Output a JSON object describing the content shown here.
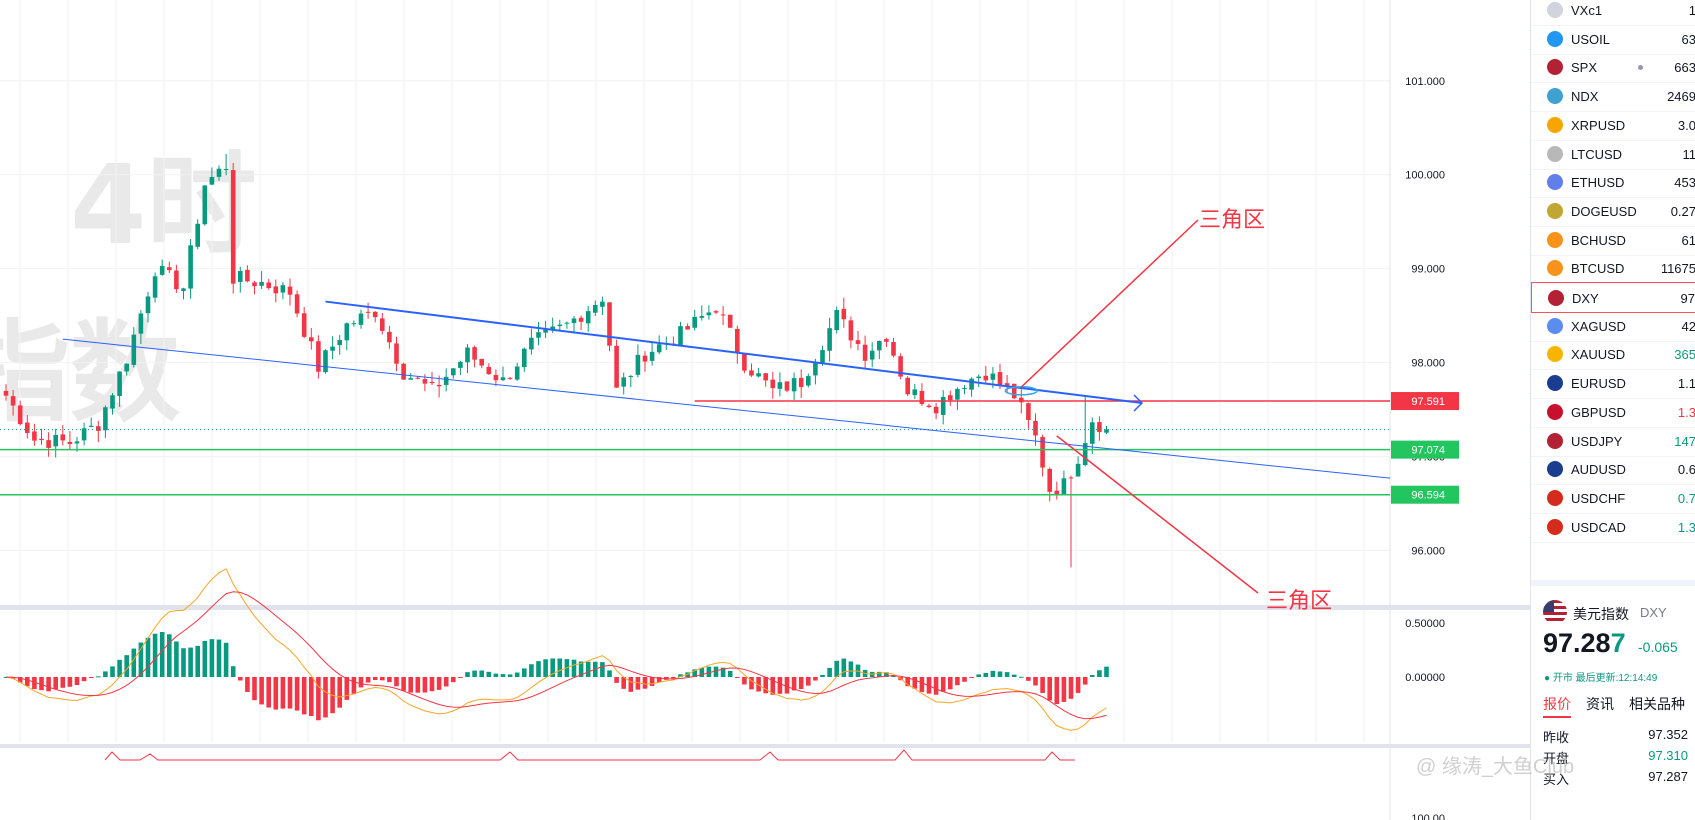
{
  "watermark": {
    "line1": "，4时",
    "line2": "指数"
  },
  "colors": {
    "up": "#089981",
    "down": "#f23645",
    "trend": "#2962ff",
    "support": "#22c55e",
    "resistance": "#f23645",
    "annotation": "#f23645"
  },
  "chart_data": [
    {
      "type": "candlestick",
      "symbol": "DXY",
      "timeframe_label": "4时",
      "y_ticks": [
        "101.000",
        "100.000",
        "99.000",
        "98.000",
        "97.000",
        "96.000"
      ],
      "y_tick_values": [
        101,
        100,
        99,
        98,
        97,
        96
      ],
      "ylim": [
        95.42,
        101.86
      ],
      "price_labels": [
        {
          "label": "97.591",
          "value": 97.591,
          "kind": "resistance"
        },
        {
          "label": "97.074",
          "value": 97.074,
          "kind": "support"
        },
        {
          "label": "96.594",
          "value": 96.594,
          "kind": "support"
        }
      ],
      "last_price": 97.287,
      "annotations": [
        {
          "text": "三角区"
        },
        {
          "text": "三角区"
        }
      ],
      "price_anchors": [
        {
          "bar": 0,
          "close": 97.65
        },
        {
          "bar": 4,
          "close": 97.18
        },
        {
          "bar": 9,
          "close": 97.15
        },
        {
          "bar": 13,
          "close": 97.35
        },
        {
          "bar": 17,
          "close": 98.05
        },
        {
          "bar": 21,
          "close": 99.0
        },
        {
          "bar": 25,
          "close": 98.8
        },
        {
          "bar": 28,
          "close": 99.9
        },
        {
          "bar": 31,
          "close": 100.1
        },
        {
          "bar": 32,
          "close": 98.9
        },
        {
          "bar": 36,
          "close": 98.85
        },
        {
          "bar": 40,
          "close": 98.75
        },
        {
          "bar": 44,
          "close": 97.95
        },
        {
          "bar": 48,
          "close": 98.4
        },
        {
          "bar": 52,
          "close": 98.55
        },
        {
          "bar": 56,
          "close": 97.9
        },
        {
          "bar": 60,
          "close": 97.7
        },
        {
          "bar": 65,
          "close": 98.1
        },
        {
          "bar": 70,
          "close": 97.8
        },
        {
          "bar": 74,
          "close": 98.2
        },
        {
          "bar": 79,
          "close": 98.4
        },
        {
          "bar": 84,
          "close": 98.7
        },
        {
          "bar": 86,
          "close": 97.7
        },
        {
          "bar": 90,
          "close": 98.1
        },
        {
          "bar": 95,
          "close": 98.3
        },
        {
          "bar": 100,
          "close": 98.6
        },
        {
          "bar": 104,
          "close": 98.0
        },
        {
          "bar": 108,
          "close": 97.7
        },
        {
          "bar": 112,
          "close": 97.8
        },
        {
          "bar": 117,
          "close": 98.5
        },
        {
          "bar": 121,
          "close": 98.1
        },
        {
          "bar": 124,
          "close": 98.3
        },
        {
          "bar": 127,
          "close": 97.7
        },
        {
          "bar": 131,
          "close": 97.55
        },
        {
          "bar": 135,
          "close": 97.8
        },
        {
          "bar": 138,
          "close": 97.9
        },
        {
          "bar": 142,
          "close": 97.65
        },
        {
          "bar": 145,
          "close": 97.2
        },
        {
          "bar": 147,
          "close": 96.65
        },
        {
          "bar": 149,
          "close": 96.7
        },
        {
          "bar": 151,
          "close": 97.0
        },
        {
          "bar": 153,
          "close": 97.4
        },
        {
          "bar": 155,
          "close": 97.29
        }
      ]
    },
    {
      "type": "macd",
      "y_ticks": [
        "0.50000",
        "0.00000"
      ],
      "y_tick_values": [
        0.5,
        0.0
      ],
      "ylim": [
        -0.6,
        0.6
      ]
    }
  ],
  "partial_bottom_tick": "100.00",
  "watchlist": [
    {
      "symbol": "VXc1",
      "price": "1",
      "icon_color": "#d1d4dc",
      "price_color": "#131722"
    },
    {
      "symbol": "USOIL",
      "price": "63",
      "icon_color": "#2196f3",
      "price_color": "#131722"
    },
    {
      "symbol": "SPX",
      "price": "663",
      "icon_color": "#b22234",
      "price_color": "#131722",
      "dot": true
    },
    {
      "symbol": "NDX",
      "price": "2469",
      "icon_color": "#40a0d0",
      "price_color": "#131722"
    },
    {
      "symbol": "XRPUSD",
      "price": "3.0",
      "icon_color": "#f7a600",
      "price_color": "#131722"
    },
    {
      "symbol": "LTCUSD",
      "price": "11",
      "icon_color": "#b8b8b8",
      "price_color": "#131722"
    },
    {
      "symbol": "ETHUSD",
      "price": "453",
      "icon_color": "#627eea",
      "price_color": "#131722"
    },
    {
      "symbol": "DOGEUSD",
      "price": "0.27",
      "icon_color": "#c2a633",
      "price_color": "#131722"
    },
    {
      "symbol": "BCHUSD",
      "price": "61",
      "icon_color": "#f7931a",
      "price_color": "#131722"
    },
    {
      "symbol": "BTCUSD",
      "price": "11675",
      "icon_color": "#f7931a",
      "price_color": "#131722"
    },
    {
      "symbol": "DXY",
      "price": "97",
      "icon_color": "#b22234",
      "price_color": "#131722",
      "selected": true
    },
    {
      "symbol": "XAGUSD",
      "price": "42",
      "icon_color": "#5b8def",
      "price_color": "#131722"
    },
    {
      "symbol": "XAUUSD",
      "price": "365",
      "icon_color": "#f7b500",
      "price_color": "#089981"
    },
    {
      "symbol": "EURUSD",
      "price": "1.1",
      "icon_color": "#1a3d8f",
      "price_color": "#131722"
    },
    {
      "symbol": "GBPUSD",
      "price": "1.3",
      "icon_color": "#c8102e",
      "price_color": "#f23645"
    },
    {
      "symbol": "USDJPY",
      "price": "147",
      "icon_color": "#b22234",
      "price_color": "#089981"
    },
    {
      "symbol": "AUDUSD",
      "price": "0.6",
      "icon_color": "#1a3d8f",
      "price_color": "#131722"
    },
    {
      "symbol": "USDCHF",
      "price": "0.7",
      "icon_color": "#d52b1e",
      "price_color": "#089981"
    },
    {
      "symbol": "USDCAD",
      "price": "1.3",
      "icon_color": "#d52b1e",
      "price_color": "#089981"
    }
  ],
  "detail": {
    "name": "美元指数",
    "symbol": "DXY",
    "price_main": "97.28",
    "price_last_digit": "7",
    "change": "-0.065",
    "status": "● 开市  最后更新:12:14:49",
    "tabs": [
      "报价",
      "资讯",
      "相关品种"
    ],
    "rows": [
      {
        "label": "昨收",
        "value": "97.352",
        "color": "#131722"
      },
      {
        "label": "开盘",
        "value": "97.310",
        "color": "#089981"
      },
      {
        "label": "买入",
        "value": "97.287",
        "color": "#131722"
      }
    ]
  },
  "source_watermark": "@ 缘涛_大鱼Club"
}
